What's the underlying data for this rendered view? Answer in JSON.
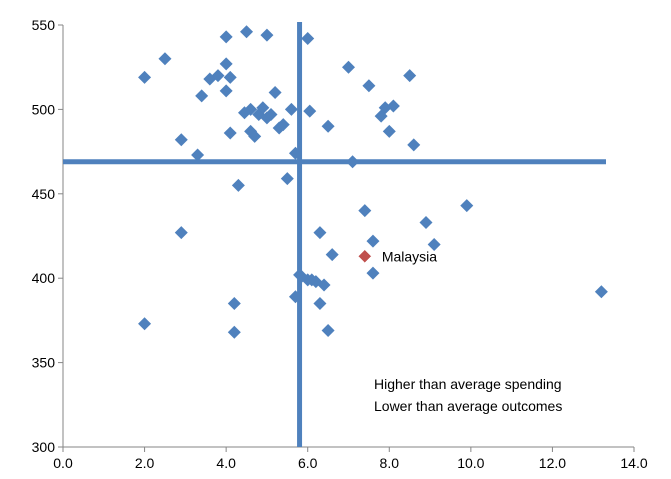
{
  "chart_data": {
    "type": "scatter",
    "title": "",
    "xlabel": "",
    "ylabel": "",
    "xlim": [
      0,
      14
    ],
    "ylim": [
      300,
      550
    ],
    "x_ticks": [
      "0.0",
      "2.0",
      "4.0",
      "6.0",
      "8.0",
      "10.0",
      "12.0",
      "14.0"
    ],
    "y_ticks": [
      "300",
      "350",
      "400",
      "450",
      "500",
      "550"
    ],
    "grid": false,
    "colors": {
      "point": "#4F81BD",
      "highlight": "#C0504D",
      "avg_line": "#4F81BD"
    },
    "average_lines": {
      "x": 5.8,
      "y": 469
    },
    "series": [
      {
        "points": [
          [
            2.0,
            519
          ],
          [
            2.5,
            530
          ],
          [
            2.0,
            373
          ],
          [
            2.9,
            482
          ],
          [
            2.9,
            427
          ],
          [
            3.3,
            473
          ],
          [
            3.4,
            508
          ],
          [
            3.6,
            518
          ],
          [
            3.8,
            520
          ],
          [
            4.0,
            527
          ],
          [
            4.0,
            543
          ],
          [
            4.0,
            511
          ],
          [
            4.1,
            519
          ],
          [
            4.1,
            486
          ],
          [
            4.2,
            385
          ],
          [
            4.2,
            368
          ],
          [
            4.3,
            455
          ],
          [
            4.45,
            498
          ],
          [
            4.5,
            546
          ],
          [
            4.6,
            500
          ],
          [
            4.6,
            487
          ],
          [
            4.7,
            484
          ],
          [
            4.8,
            497
          ],
          [
            4.9,
            501
          ],
          [
            5.0,
            544
          ],
          [
            5.0,
            495
          ],
          [
            5.1,
            497
          ],
          [
            5.2,
            510
          ],
          [
            5.3,
            489
          ],
          [
            5.4,
            491
          ],
          [
            5.5,
            459
          ],
          [
            5.6,
            500
          ],
          [
            5.7,
            474
          ],
          [
            5.7,
            389
          ],
          [
            5.8,
            402
          ],
          [
            5.85,
            401
          ],
          [
            6.0,
            542
          ],
          [
            6.0,
            399
          ],
          [
            6.05,
            499
          ],
          [
            6.1,
            399
          ],
          [
            6.2,
            398
          ],
          [
            6.3,
            427
          ],
          [
            6.3,
            385
          ],
          [
            6.4,
            396
          ],
          [
            6.5,
            490
          ],
          [
            6.5,
            369
          ],
          [
            6.6,
            414
          ],
          [
            7.0,
            525
          ],
          [
            7.1,
            469
          ],
          [
            7.4,
            440
          ],
          [
            7.5,
            514
          ],
          [
            7.6,
            422
          ],
          [
            7.6,
            403
          ],
          [
            7.8,
            496
          ],
          [
            7.9,
            501
          ],
          [
            8.0,
            487
          ],
          [
            8.1,
            502
          ],
          [
            8.5,
            520
          ],
          [
            8.6,
            479
          ],
          [
            8.9,
            433
          ],
          [
            9.1,
            420
          ],
          [
            9.9,
            443
          ],
          [
            13.2,
            392
          ]
        ]
      }
    ],
    "highlight": {
      "label": "Malaysia",
      "x": 7.4,
      "y": 413
    },
    "annotations": [
      "Higher than average spending",
      "Lower than average outcomes"
    ]
  }
}
